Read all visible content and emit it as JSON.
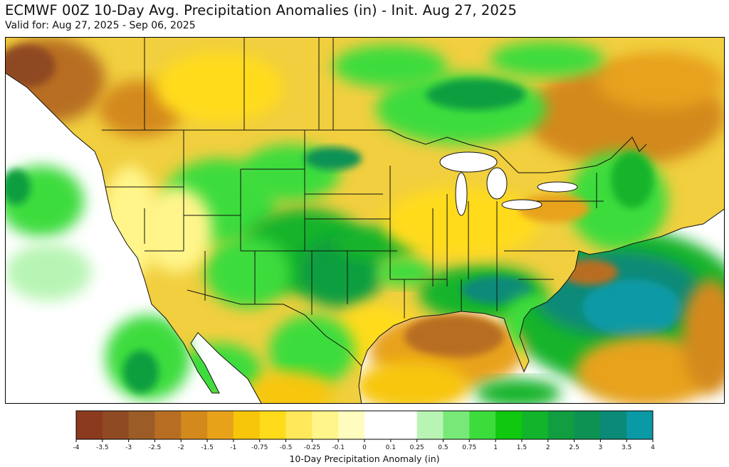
{
  "header": {
    "title": "ECMWF 00Z 10-Day Avg. Precipitation Anomalies (in) - Init. Aug 27, 2025",
    "subtitle": "Valid for: Aug 27, 2025 - Sep 06, 2025"
  },
  "colorbar": {
    "label": "10-Day Precipitation Anomaly (in)",
    "ticks": [
      "-4",
      "-3.5",
      "-3",
      "-2.5",
      "-2",
      "-1.5",
      "-1",
      "-0.75",
      "-0.5",
      "-0.25",
      "-0.1",
      "0",
      "0.1",
      "0.25",
      "0.5",
      "0.75",
      "1",
      "1.5",
      "2",
      "2.5",
      "3",
      "3.5",
      "4"
    ],
    "bin_colors": [
      "#8b3a1e",
      "#8f4a23",
      "#9b5c28",
      "#b86e22",
      "#d4891c",
      "#e8a21a",
      "#f7c60a",
      "#ffdb1a",
      "#ffe95a",
      "#fff58a",
      "#fffcc0",
      "#ffffff",
      "#ffffff",
      "#b8f5b4",
      "#78e878",
      "#3cdc3c",
      "#0fc80f",
      "#12b42c",
      "#109e40",
      "#0e9254",
      "#0c8a78",
      "#0a9aa6",
      "#0ba8c4"
    ]
  },
  "map": {
    "land_base_color": "#f1cf3f",
    "ocean_color": "#ffffff"
  }
}
